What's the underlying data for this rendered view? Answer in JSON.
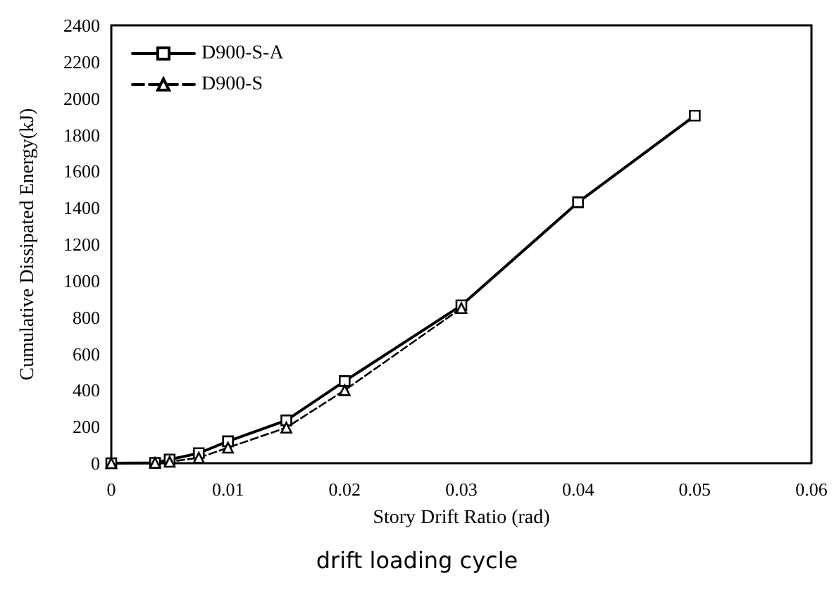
{
  "chart_data": {
    "type": "line",
    "xlabel": "Story Drift Ratio (rad)",
    "ylabel": "Cumulative Dissipated Energy(kJ)",
    "annotations": [
      "drift loading cycle"
    ],
    "xlim": [
      0,
      0.06
    ],
    "xticks": [
      0,
      0.01,
      0.02,
      0.03,
      0.04,
      0.05,
      0.06
    ],
    "ylim": [
      0,
      2400
    ],
    "yticks": [
      0,
      200,
      400,
      600,
      800,
      1000,
      1200,
      1400,
      1600,
      1800,
      2000,
      2200,
      2400
    ],
    "grid": false,
    "legend": "top left",
    "series": [
      {
        "name": "D900-S-A",
        "color": "#000000",
        "marker": "square",
        "line_style": "solid",
        "x": [
          0,
          0.00375,
          0.005,
          0.0075,
          0.01,
          0.015,
          0.02,
          0.03,
          0.04,
          0.05
        ],
        "values": [
          0,
          2,
          20,
          55,
          120,
          235,
          450,
          865,
          1430,
          1905
        ]
      },
      {
        "name": "D900-S",
        "color": "#000000",
        "marker": "triangle",
        "line_style": "dashed",
        "x": [
          0,
          0.00375,
          0.005,
          0.0075,
          0.01,
          0.015,
          0.02,
          0.03
        ],
        "values": [
          0,
          2,
          8,
          30,
          85,
          195,
          400,
          850
        ]
      }
    ]
  }
}
